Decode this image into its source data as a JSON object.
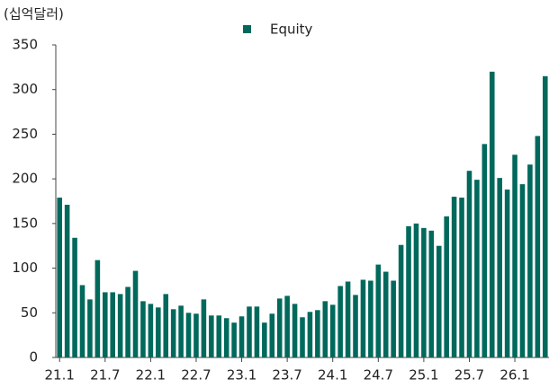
{
  "chart_data": {
    "type": "bar",
    "unit_label": "(십억달러)",
    "categories": [
      "21.1",
      null,
      null,
      null,
      null,
      null,
      "21.7",
      null,
      null,
      null,
      null,
      null,
      "22.1",
      null,
      null,
      null,
      null,
      null,
      "22.7",
      null,
      null,
      null,
      null,
      null,
      "23.1",
      null,
      null,
      null,
      null,
      null,
      "23.7",
      null,
      null,
      null,
      null,
      null,
      "24.1",
      null,
      null,
      null,
      null,
      null,
      "24.7",
      null,
      null,
      null,
      null,
      null,
      "25.1",
      null,
      null,
      null,
      null,
      null,
      "25.7",
      null,
      null,
      null,
      null,
      null,
      "26.1",
      null,
      null,
      null,
      null
    ],
    "series": [
      {
        "name": "Equity",
        "color": "#00695c",
        "values": [
          179,
          171,
          134,
          81,
          65,
          109,
          73,
          73,
          71,
          79,
          97,
          63,
          60,
          56,
          71,
          54,
          58,
          50,
          49,
          65,
          47,
          47,
          44,
          39,
          46,
          57,
          57,
          39,
          49,
          66,
          69,
          60,
          45,
          51,
          53,
          63,
          59,
          80,
          85,
          70,
          87,
          86,
          104,
          96,
          86,
          126,
          147,
          150,
          145,
          142,
          125,
          158,
          180,
          179,
          209,
          199,
          239,
          320,
          201,
          188,
          227,
          194,
          216,
          248,
          315
        ]
      }
    ],
    "ylim": [
      0,
      350
    ],
    "yticks": [
      0,
      50,
      100,
      150,
      200,
      250,
      300,
      350
    ],
    "legend": "top"
  }
}
